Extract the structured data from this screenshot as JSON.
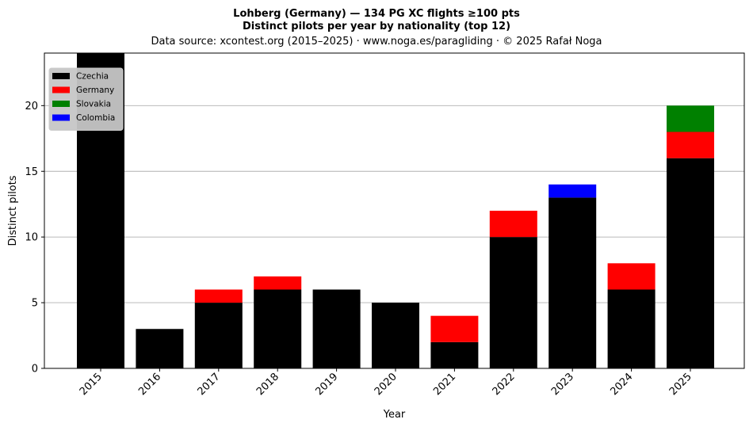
{
  "chart_data": {
    "type": "bar",
    "stacked": true,
    "title_lines": [
      "Lohberg (Germany)  —  134 PG XC flights ≥100 pts",
      "Distinct pilots per year by nationality (top 12)",
      "Data source: xcontest.org (2015–2025)  ·  www.noga.es/paragliding  ·  © 2025 Rafał Noga"
    ],
    "xlabel": "Year",
    "ylabel": "Distinct pilots",
    "categories": [
      "2015",
      "2016",
      "2017",
      "2018",
      "2019",
      "2020",
      "2021",
      "2022",
      "2023",
      "2024",
      "2025"
    ],
    "series": [
      {
        "name": "Czechia",
        "color": "#000000",
        "values": [
          24,
          3,
          5,
          6,
          6,
          5,
          2,
          10,
          13,
          6,
          16
        ]
      },
      {
        "name": "Germany",
        "color": "#ff0000",
        "values": [
          0,
          0,
          1,
          1,
          0,
          0,
          2,
          2,
          0,
          2,
          2
        ]
      },
      {
        "name": "Slovakia",
        "color": "#008000",
        "values": [
          0,
          0,
          0,
          0,
          0,
          0,
          0,
          0,
          0,
          0,
          2
        ]
      },
      {
        "name": "Colombia",
        "color": "#0000ff",
        "values": [
          0,
          0,
          0,
          0,
          0,
          0,
          0,
          0,
          1,
          0,
          0
        ]
      }
    ],
    "ylim": [
      0,
      24
    ],
    "yticks": [
      0,
      5,
      10,
      15,
      20
    ],
    "grid": "horizontal",
    "legend_position": "top-left"
  }
}
